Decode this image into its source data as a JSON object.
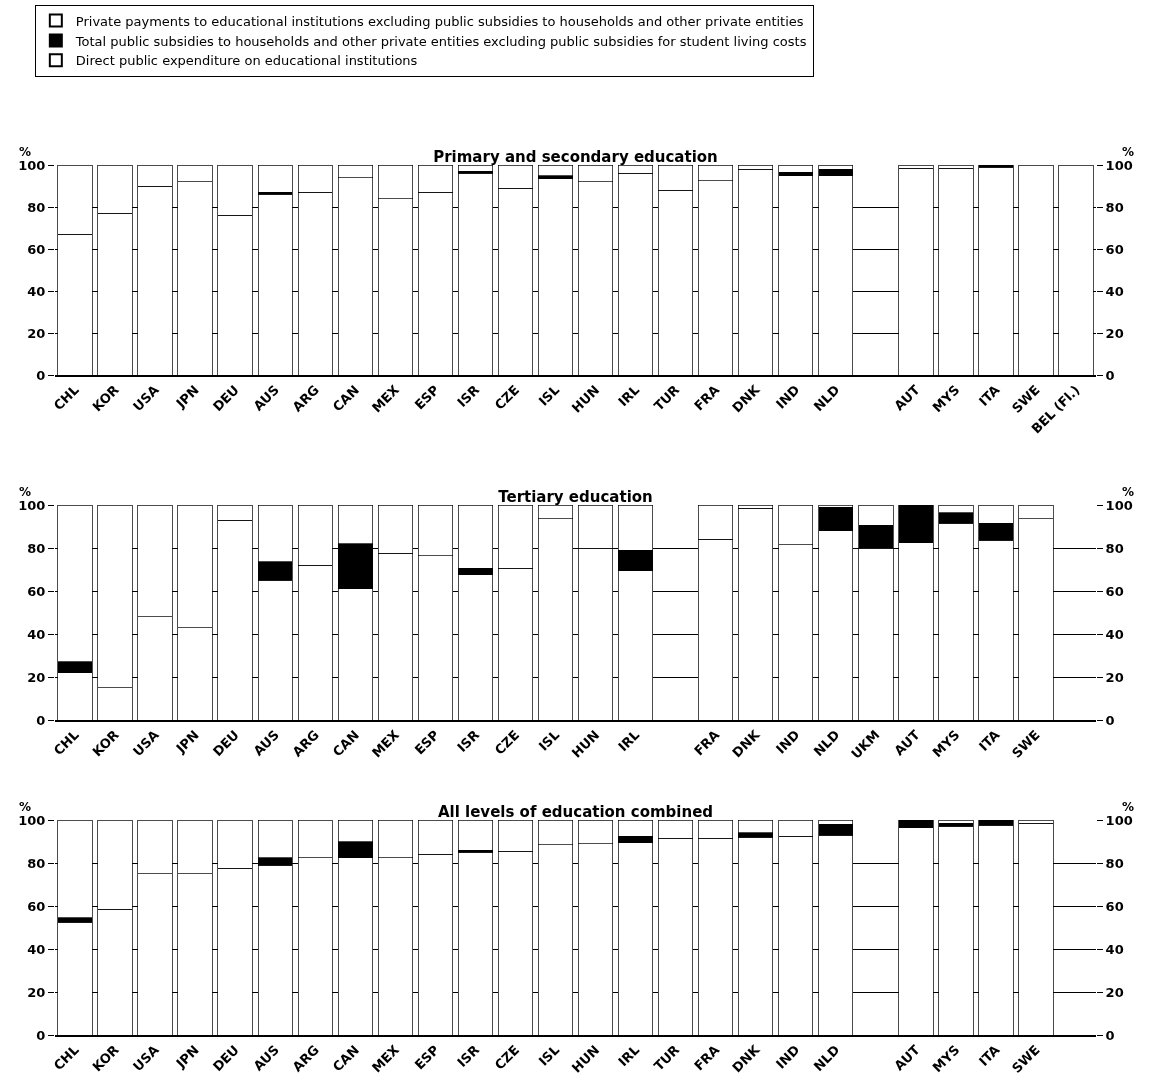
{
  "chart_data": [
    {
      "type": "bar",
      "stacked": true,
      "title": "Primary and secondary education",
      "ylabel": "%",
      "y2label": "%",
      "categories": [
        "CHL",
        "KOR",
        "USA",
        "JPN",
        "DEU",
        "AUS",
        "ARG",
        "CAN",
        "MEX",
        "ESP",
        "ISR",
        "CZE",
        "ISL",
        "HUN",
        "IRL",
        "TUR",
        "FRA",
        "DNK",
        "IND",
        "NLD",
        null,
        "AUT",
        "MYS",
        "ITA",
        "SWE",
        "BEL (Fl.)"
      ],
      "series": [
        {
          "name": "Direct public expenditure on educational institutions",
          "color": "#ffffff",
          "values": [
            67,
            77,
            90,
            92,
            76,
            86,
            87,
            94,
            84,
            87,
            96,
            89,
            93.5,
            92,
            96,
            88,
            92.5,
            98,
            95,
            95,
            null,
            98.5,
            98.5,
            99,
            100,
            100
          ]
        },
        {
          "name": "Total public subsidies to households and other private entities excluding public subsidies for student living costs",
          "color": "#000000",
          "values": [
            0,
            0,
            0,
            0,
            0,
            1,
            0,
            0,
            0,
            0,
            1,
            0,
            1.5,
            0,
            0,
            0,
            0,
            0,
            1.5,
            3,
            null,
            0,
            0,
            1,
            0,
            0
          ]
        },
        {
          "name": "Private payments to educational institutions excluding public subsidies to households and other private entities",
          "color": "#ffffff",
          "values": [
            33,
            23,
            10,
            8,
            24,
            13,
            13,
            6,
            16,
            13,
            3,
            11,
            5,
            8,
            4,
            12,
            7.5,
            2,
            3.5,
            2,
            null,
            1.5,
            1.5,
            0,
            0,
            0
          ]
        }
      ],
      "ylim": [
        0,
        100
      ],
      "yticks": [
        0,
        20,
        40,
        60,
        80,
        100
      ],
      "y2lim": [
        0,
        100
      ],
      "y2ticks": [
        0,
        20,
        40,
        60,
        80,
        100
      ],
      "grid": "y",
      "legend": "top"
    },
    {
      "type": "bar",
      "stacked": true,
      "title": "Tertiary education",
      "ylabel": "%",
      "y2label": "%",
      "categories": [
        "CHL",
        "KOR",
        "USA",
        "JPN",
        "DEU",
        "AUS",
        "ARG",
        "CAN",
        "MEX",
        "ESP",
        "ISR",
        "CZE",
        "ISL",
        "HUN",
        "IRL",
        null,
        "FRA",
        "DNK",
        "IND",
        "NLD",
        "UKM",
        "AUT",
        "MYS",
        "ITA",
        "SWE",
        null
      ],
      "series": [
        {
          "color": "#ffffff",
          "values": [
            22,
            15,
            48,
            43,
            93,
            65,
            72,
            61,
            77.5,
            76.5,
            67.5,
            70.5,
            93.5,
            80,
            69.5,
            null,
            84,
            98.5,
            81.5,
            88,
            80,
            82.5,
            91.5,
            83.5,
            93.5,
            null
          ]
        },
        {
          "color": "#000000",
          "values": [
            5,
            0,
            0,
            0,
            0,
            8.5,
            0,
            21,
            0,
            0,
            3,
            0,
            0,
            0,
            9.5,
            null,
            0,
            0,
            0,
            11,
            10.5,
            17.5,
            5,
            8,
            0,
            null
          ]
        },
        {
          "color": "#ffffff",
          "values": [
            73,
            85,
            52,
            57,
            7,
            26.5,
            28,
            18,
            22.5,
            23.5,
            29.5,
            29.5,
            6.5,
            20,
            21,
            null,
            16,
            1.5,
            18.5,
            1,
            9.5,
            0,
            3.5,
            8.5,
            6.5,
            null
          ]
        }
      ],
      "ylim": [
        0,
        100
      ],
      "yticks": [
        0,
        20,
        40,
        60,
        80,
        100
      ],
      "y2lim": [
        0,
        100
      ],
      "y2ticks": [
        0,
        20,
        40,
        60,
        80,
        100
      ],
      "grid": "y"
    },
    {
      "type": "bar",
      "stacked": true,
      "title": "All levels of education combined",
      "ylabel": "%",
      "y2label": "%",
      "categories": [
        "CHL",
        "KOR",
        "USA",
        "JPN",
        "DEU",
        "AUS",
        "ARG",
        "CAN",
        "MEX",
        "ESP",
        "ISR",
        "CZE",
        "ISL",
        "HUN",
        "IRL",
        "TUR",
        "FRA",
        "DNK",
        "IND",
        "NLD",
        null,
        "AUT",
        "MYS",
        "ITA",
        "SWE",
        null
      ],
      "series": [
        {
          "color": "#ffffff",
          "values": [
            52.5,
            58.5,
            75,
            75,
            77.5,
            79,
            82.5,
            82.5,
            82.5,
            84,
            85,
            85.5,
            88.5,
            89,
            89.5,
            91.5,
            91.5,
            92,
            92.5,
            93,
            null,
            96.5,
            97,
            97.5,
            98.5,
            null
          ]
        },
        {
          "color": "#000000",
          "values": [
            2,
            0,
            0,
            0,
            0,
            3.5,
            0,
            7.5,
            0,
            0,
            1,
            0,
            0,
            0,
            3,
            0,
            0,
            2,
            0,
            5,
            null,
            3.5,
            1.5,
            2.5,
            0,
            null
          ]
        },
        {
          "color": "#ffffff",
          "values": [
            45.5,
            41.5,
            25,
            25,
            22.5,
            17.5,
            17.5,
            10,
            17.5,
            16,
            14,
            14.5,
            11.5,
            11,
            7.5,
            8.5,
            8.5,
            6,
            7.5,
            2,
            null,
            0,
            1.5,
            0,
            1.5,
            null
          ]
        }
      ],
      "ylim": [
        0,
        100
      ],
      "yticks": [
        0,
        20,
        40,
        60,
        80,
        100
      ],
      "y2lim": [
        0,
        100
      ],
      "y2ticks": [
        0,
        20,
        40,
        60,
        80,
        100
      ],
      "grid": "y"
    }
  ]
}
